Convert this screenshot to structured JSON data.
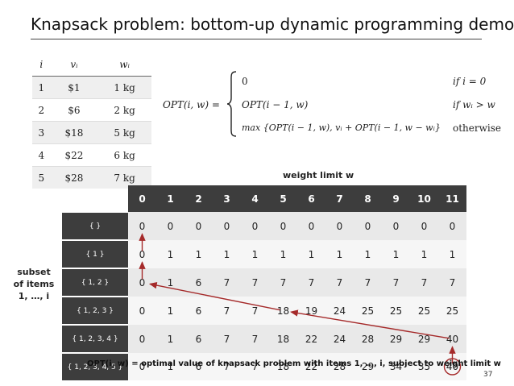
{
  "title": "Knapsack problem:  bottom-up dynamic programming demo",
  "item_table": {
    "headers": [
      "i",
      "vᵢ",
      "wᵢ"
    ],
    "rows": [
      [
        "1",
        "$1",
        "1 kg"
      ],
      [
        "2",
        "$6",
        "2 kg"
      ],
      [
        "3",
        "$18",
        "5 kg"
      ],
      [
        "4",
        "$22",
        "6 kg"
      ],
      [
        "5",
        "$28",
        "7 kg"
      ]
    ]
  },
  "formula": {
    "lhs": "OPT(i, w)  =",
    "cases": [
      {
        "expr": "0",
        "cond": "if i = 0"
      },
      {
        "expr": "OPT(i − 1, w)",
        "cond": "if wᵢ > w"
      },
      {
        "expr": "max {OPT(i − 1, w), vᵢ + OPT(i − 1, w − wᵢ}",
        "cond": "otherwise"
      }
    ]
  },
  "x_axis_label": "weight limit w",
  "y_axis_label": [
    "subset",
    "of items",
    "1, …, i"
  ],
  "grid": {
    "columns": [
      "0",
      "1",
      "2",
      "3",
      "4",
      "5",
      "6",
      "7",
      "8",
      "9",
      "10",
      "11"
    ],
    "rows": [
      {
        "label": "{  }",
        "values": [
          "0",
          "0",
          "0",
          "0",
          "0",
          "0",
          "0",
          "0",
          "0",
          "0",
          "0",
          "0"
        ]
      },
      {
        "label": "{ 1 }",
        "values": [
          "0",
          "1",
          "1",
          "1",
          "1",
          "1",
          "1",
          "1",
          "1",
          "1",
          "1",
          "1"
        ]
      },
      {
        "label": "{ 1, 2 }",
        "values": [
          "0",
          "1",
          "6",
          "7",
          "7",
          "7",
          "7",
          "7",
          "7",
          "7",
          "7",
          "7"
        ]
      },
      {
        "label": "{ 1, 2, 3 }",
        "values": [
          "0",
          "1",
          "6",
          "7",
          "7",
          "18",
          "19",
          "24",
          "25",
          "25",
          "25",
          "25"
        ]
      },
      {
        "label": "{ 1, 2, 3, 4 }",
        "values": [
          "0",
          "1",
          "6",
          "7",
          "7",
          "18",
          "22",
          "24",
          "28",
          "29",
          "29",
          "40"
        ]
      },
      {
        "label": "{ 1, 2, 3, 4, 5 }",
        "values": [
          "0",
          "1",
          "6",
          "7",
          "7",
          "18",
          "22",
          "28",
          "29",
          "34",
          "35",
          "40"
        ]
      }
    ]
  },
  "highlight_color": "#a52a2a",
  "footer": "OPT(i, w) = optimal value of knapsack problem with items 1, …, i, subject to weight limit w",
  "page_number": "37"
}
